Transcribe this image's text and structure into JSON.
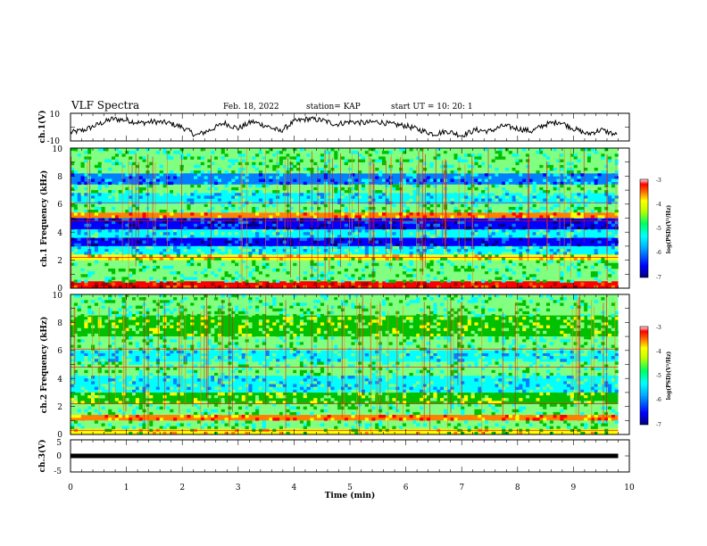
{
  "header": {
    "title": "VLF Spectra",
    "date": "Feb. 18, 2022",
    "station": "station= KAP",
    "start": "start  UT =   10: 20: 1"
  },
  "colors": {
    "colormap": [
      "#000080",
      "#0000ff",
      "#0080ff",
      "#00ffff",
      "#80ff80",
      "#00c000",
      "#ffff00",
      "#ff8000",
      "#ff0000",
      "#800000"
    ],
    "line": "#000000"
  },
  "chart_data": [
    {
      "type": "line",
      "panel": "ch1-waveform",
      "ylabel": "ch.1(V)",
      "ylim": [
        -10,
        10
      ],
      "yticks": [
        "10",
        "-10"
      ],
      "x": [
        0,
        0.25,
        0.5,
        0.75,
        1.0,
        1.25,
        1.5,
        1.75,
        2.0,
        2.25,
        2.5,
        2.75,
        3.0,
        3.25,
        3.5,
        3.75,
        4.0,
        4.25,
        4.5,
        4.75,
        5.0,
        5.25,
        5.5,
        5.75,
        6.0,
        6.25,
        6.5,
        6.75,
        7.0,
        7.25,
        7.5,
        7.75,
        8.0,
        8.25,
        8.5,
        8.75,
        9.0,
        9.25,
        9.5,
        9.8
      ],
      "y": [
        -4,
        -2,
        2,
        6,
        5,
        3,
        4,
        3,
        0,
        -6,
        -2,
        3,
        -1,
        4,
        1,
        -3,
        4,
        6,
        5,
        2,
        4,
        3,
        4,
        2,
        1,
        -2,
        -5,
        -3,
        -6,
        -2,
        -3,
        1,
        -1,
        -3,
        2,
        4,
        -1,
        -5,
        -2,
        -6
      ]
    },
    {
      "type": "heatmap",
      "panel": "ch1-spectrogram",
      "ylabel": "ch.1 Frequency (kHz)",
      "ylim": [
        0,
        10
      ],
      "yticks": [
        "0",
        "2",
        "4",
        "6",
        "8",
        "10"
      ],
      "colorbar": {
        "label": "log(PSD)(V²/Hz)",
        "range": [
          -7,
          -3
        ],
        "ticks": [
          "-3",
          "-4",
          "-5",
          "-6",
          "-7"
        ]
      },
      "bands": [
        {
          "from": 0.0,
          "to": 0.5,
          "level": 8
        },
        {
          "from": 0.5,
          "to": 2.0,
          "level": 4
        },
        {
          "from": 2.0,
          "to": 2.4,
          "level": 6
        },
        {
          "from": 2.4,
          "to": 3.0,
          "level": 3
        },
        {
          "from": 3.0,
          "to": 3.6,
          "level": 1
        },
        {
          "from": 3.6,
          "to": 4.2,
          "level": 3
        },
        {
          "from": 4.2,
          "to": 5.0,
          "level": 1
        },
        {
          "from": 5.0,
          "to": 5.4,
          "level": 7
        },
        {
          "from": 5.4,
          "to": 6.0,
          "level": 4
        },
        {
          "from": 6.0,
          "to": 6.8,
          "level": 3
        },
        {
          "from": 6.8,
          "to": 7.4,
          "level": 4
        },
        {
          "from": 7.4,
          "to": 8.2,
          "level": 2
        },
        {
          "from": 8.2,
          "to": 10.0,
          "level": 4
        }
      ]
    },
    {
      "type": "heatmap",
      "panel": "ch2-spectrogram",
      "ylabel": "ch.2 Frequency (kHz)",
      "ylim": [
        0,
        10
      ],
      "yticks": [
        "0",
        "2",
        "4",
        "6",
        "8",
        "10"
      ],
      "colorbar": {
        "label": "log(PSD)(V²/Hz)",
        "range": [
          -7,
          -3
        ],
        "ticks": [
          "-3",
          "-4",
          "-5",
          "-6",
          "-7"
        ]
      },
      "bands": [
        {
          "from": 0.0,
          "to": 0.4,
          "level": 6
        },
        {
          "from": 0.4,
          "to": 1.0,
          "level": 4
        },
        {
          "from": 1.0,
          "to": 1.4,
          "level": 7
        },
        {
          "from": 1.4,
          "to": 2.2,
          "level": 4
        },
        {
          "from": 2.2,
          "to": 3.0,
          "level": 5
        },
        {
          "from": 3.0,
          "to": 4.2,
          "level": 3
        },
        {
          "from": 4.2,
          "to": 5.2,
          "level": 4
        },
        {
          "from": 5.2,
          "to": 6.0,
          "level": 3
        },
        {
          "from": 6.0,
          "to": 7.0,
          "level": 4
        },
        {
          "from": 7.0,
          "to": 8.5,
          "level": 5
        },
        {
          "from": 8.5,
          "to": 10.0,
          "level": 4
        }
      ]
    },
    {
      "type": "line",
      "panel": "ch3-waveform",
      "ylabel": "ch.3(V)",
      "ylim": [
        -5,
        5
      ],
      "yticks": [
        "5",
        "0",
        "-5"
      ],
      "x": [
        0,
        9.8
      ],
      "y": [
        0,
        0
      ]
    }
  ],
  "xaxis": {
    "label": "Time (min)",
    "xlim": [
      0,
      10
    ],
    "ticks": [
      "0",
      "1",
      "2",
      "3",
      "4",
      "5",
      "6",
      "7",
      "8",
      "9",
      "10"
    ]
  }
}
